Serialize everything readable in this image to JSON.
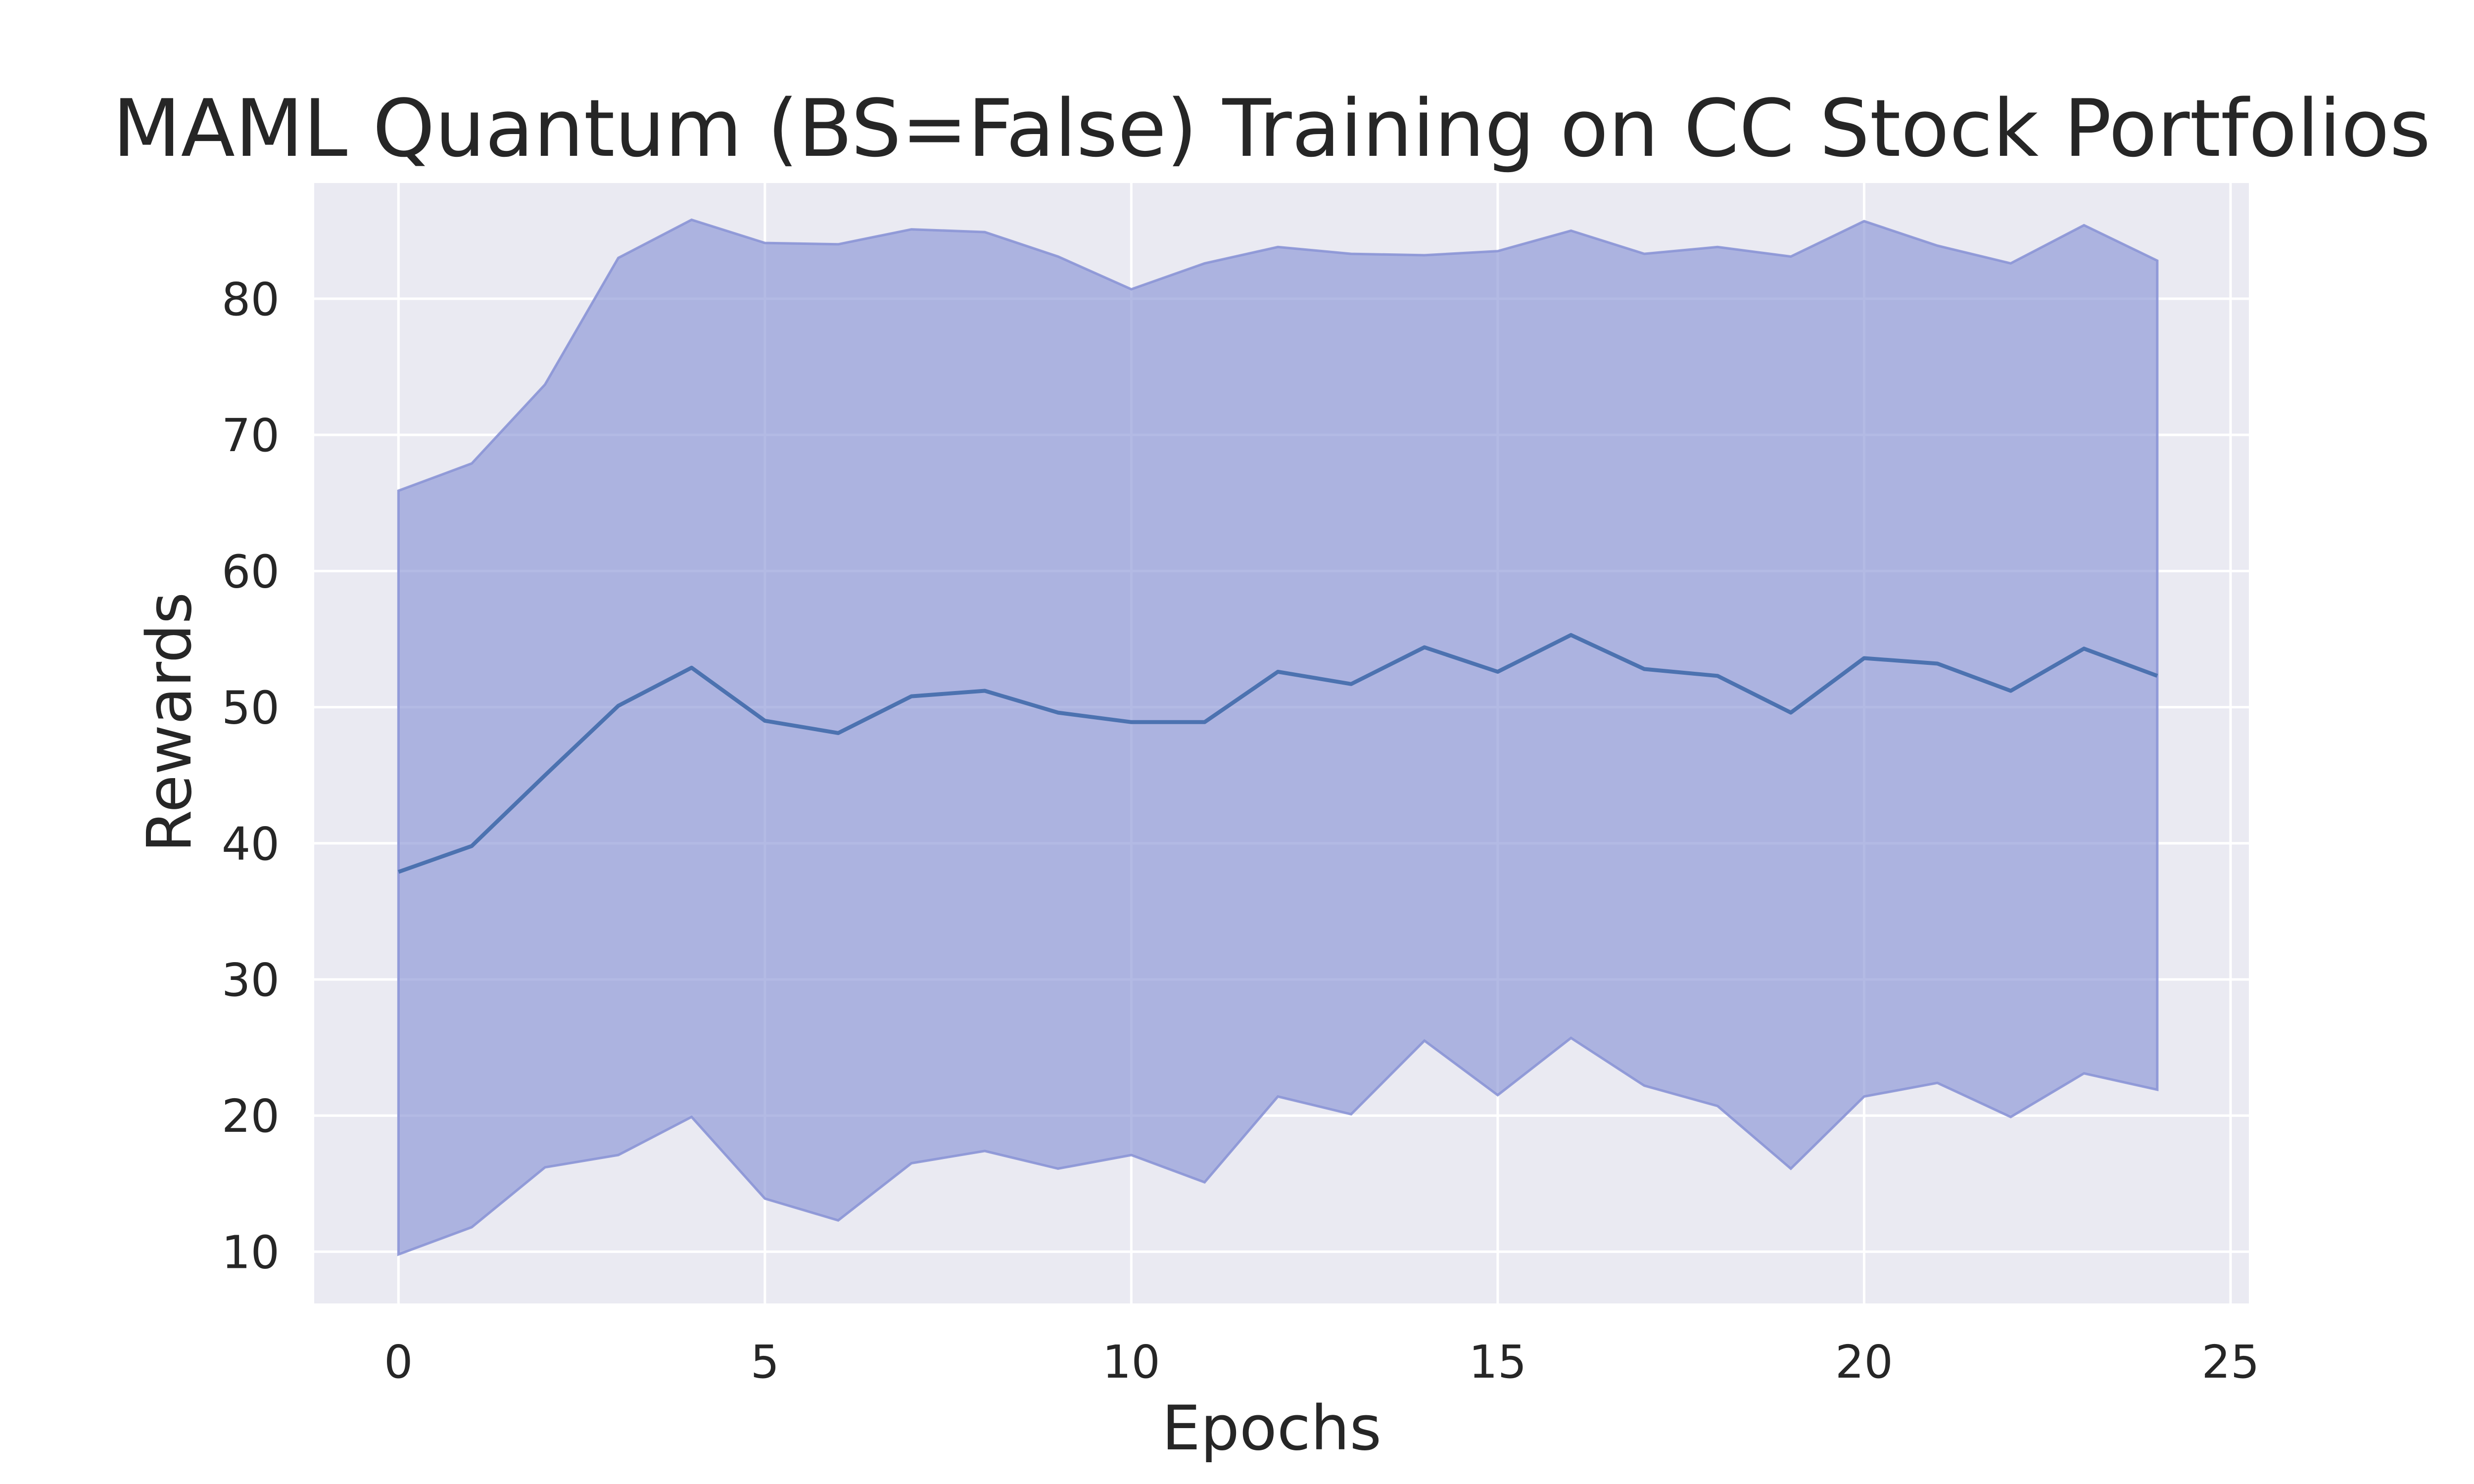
{
  "chart_data": {
    "type": "line",
    "title": "MAML Quantum (BS=False) Training on CC Stock Portfolios",
    "xlabel": "Epochs",
    "ylabel": "Rewards",
    "xlim": [
      -1.15,
      25.25
    ],
    "ylim": [
      6.2,
      88.5
    ],
    "xticks": [
      0,
      5,
      10,
      15,
      20,
      25
    ],
    "yticks": [
      10,
      20,
      30,
      40,
      50,
      60,
      70,
      80
    ],
    "grid": true,
    "legend": "none",
    "colors": {
      "mean": "#4c72b0",
      "band": "#8b95d6",
      "background": "#eaeaf2",
      "grid": "#ffffff"
    },
    "x": [
      0,
      1,
      2,
      3,
      4,
      5,
      6,
      7,
      8,
      9,
      10,
      11,
      12,
      13,
      14,
      15,
      16,
      17,
      18,
      19,
      20,
      21,
      22,
      23,
      24
    ],
    "series": [
      {
        "values": [
          37.9,
          39.8,
          45.0,
          50.1,
          52.9,
          49.0,
          48.1,
          50.8,
          51.2,
          49.6,
          48.9,
          48.9,
          52.6,
          51.7,
          54.4,
          52.6,
          55.3,
          52.8,
          52.3,
          49.6,
          53.6,
          53.2,
          51.2,
          54.3,
          52.3
        ],
        "lower": [
          9.8,
          11.8,
          16.2,
          17.1,
          19.9,
          13.9,
          12.3,
          16.5,
          17.4,
          16.1,
          17.1,
          15.1,
          21.4,
          20.1,
          25.5,
          21.5,
          25.7,
          22.2,
          20.7,
          16.1,
          21.4,
          22.4,
          19.9,
          23.1,
          21.9
        ],
        "upper": [
          65.9,
          67.9,
          73.7,
          83.0,
          85.8,
          84.1,
          84.0,
          85.1,
          84.9,
          83.1,
          80.7,
          82.6,
          83.8,
          83.3,
          83.2,
          83.5,
          85.0,
          83.3,
          83.8,
          83.1,
          85.7,
          83.9,
          82.6,
          85.4,
          82.8
        ]
      }
    ]
  }
}
